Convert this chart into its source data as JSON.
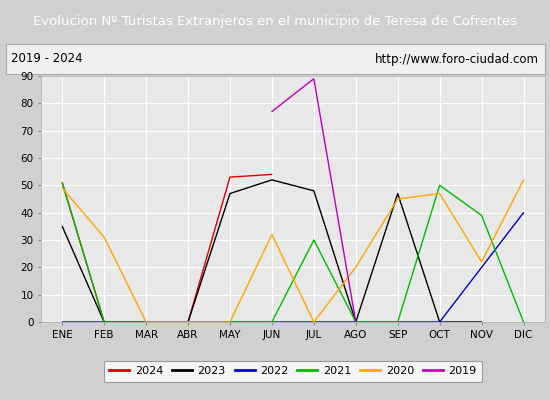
{
  "title": "Evolucion Nº Turistas Extranjeros en el municipio de Teresa de Cofrentes",
  "subtitle_left": "2019 - 2024",
  "subtitle_right": "http://www.foro-ciudad.com",
  "months": [
    "ENE",
    "FEB",
    "MAR",
    "ABR",
    "MAY",
    "JUN",
    "JUL",
    "AGO",
    "SEP",
    "OCT",
    "NOV",
    "DIC"
  ],
  "ylim": [
    0,
    90
  ],
  "yticks": [
    0,
    10,
    20,
    30,
    40,
    50,
    60,
    70,
    80,
    90
  ],
  "series": {
    "2024": {
      "color": "#dd0000",
      "data": [
        51,
        0,
        0,
        0,
        53,
        54,
        null,
        null,
        null,
        null,
        null,
        null
      ]
    },
    "2023": {
      "color": "#000000",
      "data": [
        35,
        0,
        0,
        0,
        47,
        52,
        48,
        0,
        47,
        0,
        0,
        null
      ]
    },
    "2022": {
      "color": "#0000cc",
      "data": [
        0,
        0,
        0,
        0,
        0,
        0,
        0,
        0,
        0,
        0,
        20,
        40
      ]
    },
    "2021": {
      "color": "#00bb00",
      "data": [
        51,
        0,
        0,
        0,
        0,
        0,
        30,
        0,
        0,
        50,
        39,
        0
      ]
    },
    "2020": {
      "color": "#ffa500",
      "data": [
        49,
        31,
        0,
        0,
        0,
        32,
        0,
        20,
        45,
        47,
        22,
        52
      ]
    },
    "2019": {
      "color": "#bb00bb",
      "data": [
        null,
        null,
        null,
        null,
        null,
        77,
        89,
        0,
        null,
        null,
        null,
        null
      ]
    }
  },
  "legend_order": [
    "2024",
    "2023",
    "2022",
    "2021",
    "2020",
    "2019"
  ],
  "title_bg_color": "#4d8fcc",
  "title_text_color": "#ffffff",
  "subtitle_bg_color": "#f0f0f0",
  "subtitle_border_color": "#aaaaaa",
  "plot_bg_color": "#e8e8e8",
  "grid_color": "#ffffff",
  "outer_bg_color": "#d0d0d0"
}
